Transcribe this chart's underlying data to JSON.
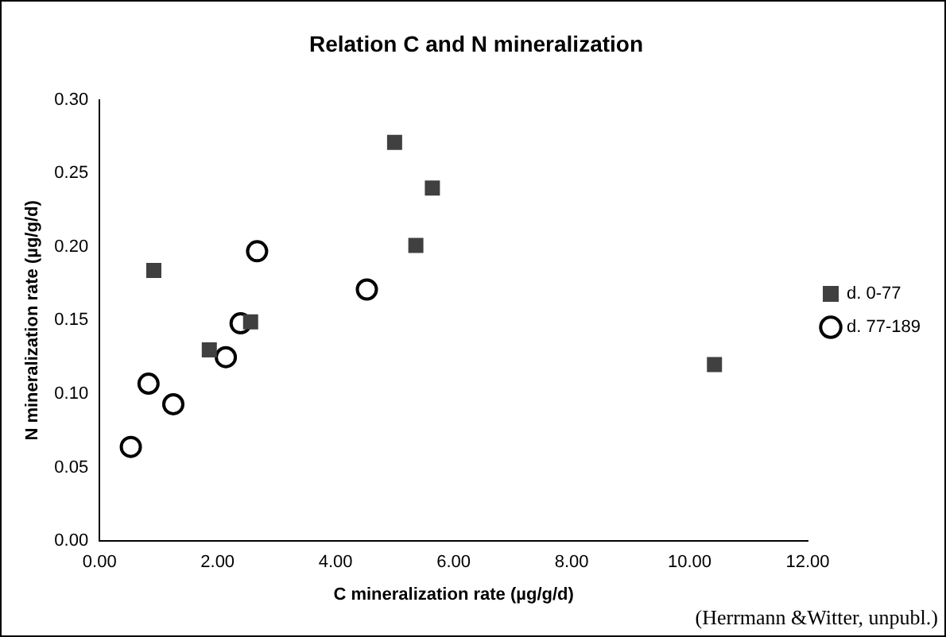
{
  "chart_data": {
    "type": "scatter",
    "title": "Relation C and N mineralization",
    "xlabel": "C mineralization rate (µg/g/d)",
    "ylabel": "N mineralization rate (µg/g/d)",
    "series": [
      {
        "name": "d. 0-77",
        "color": "#404040",
        "marker": "square",
        "x": [
          0.92,
          1.86,
          2.56,
          5.0,
          5.36,
          5.64,
          10.42
        ],
        "values": [
          0.184,
          0.13,
          0.149,
          0.271,
          0.201,
          0.24,
          0.12
        ]
      },
      {
        "name": "d. 77-189",
        "color": "#000000",
        "marker": "circle",
        "x": [
          0.53,
          0.83,
          1.25,
          2.14,
          2.39,
          2.67,
          4.53
        ],
        "values": [
          0.064,
          0.107,
          0.093,
          0.125,
          0.148,
          0.197,
          0.171
        ]
      }
    ],
    "xlim": [
      0,
      12
    ],
    "xticks": [
      {
        "value": 0,
        "label": "0.00"
      },
      {
        "value": 2,
        "label": "2.00"
      },
      {
        "value": 4,
        "label": "4.00"
      },
      {
        "value": 6,
        "label": "6.00"
      },
      {
        "value": 8,
        "label": "8.00"
      },
      {
        "value": 10,
        "label": "10.00"
      },
      {
        "value": 12,
        "label": "12.00"
      }
    ],
    "ylim": [
      0,
      0.3
    ],
    "yticks": [
      {
        "value": 0,
        "label": "0.00"
      },
      {
        "value": 0.05,
        "label": "0.05"
      },
      {
        "value": 0.1,
        "label": "0.10"
      },
      {
        "value": 0.15,
        "label": "0.15"
      },
      {
        "value": 0.2,
        "label": "0.20"
      },
      {
        "value": 0.25,
        "label": "0.25"
      },
      {
        "value": 0.3,
        "label": "0.30"
      }
    ],
    "grid": false,
    "legend": "right",
    "annotations": [
      "(Herrmann &Witter, unpubl.)"
    ]
  }
}
